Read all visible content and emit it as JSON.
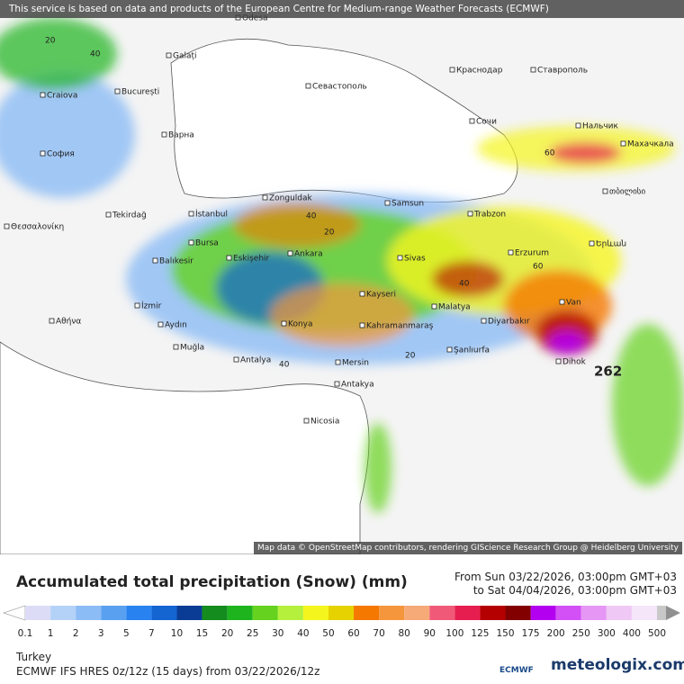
{
  "header": {
    "notice": "This service is based on data and products of the European Centre for Medium-range Weather Forecasts (ECMWF)"
  },
  "map": {
    "attribution": "Map data © OpenStreetMap contributors, rendering GIScience Research Group @ Heidelberg University",
    "cities": [
      "Odesa",
      "Galați",
      "Craiova",
      "București",
      "Севастополь",
      "Краснодар",
      "Ставрополь",
      "Варна",
      "София",
      "Сочи",
      "Нальчик",
      "Махачкала",
      "თბილისი",
      "Zonguldak",
      "Samsun",
      "Trabzon",
      "Tekirdağ",
      "İstanbul",
      "Θεσσαλονίκη",
      "Bursa",
      "Balıkesir",
      "Eskişehir",
      "Ankara",
      "Sivas",
      "Erzurum",
      "Երևան",
      "Kayseri",
      "İzmir",
      "Αθήνα",
      "Aydın",
      "Konya",
      "Kahramanmaraş",
      "Malatya",
      "Diyarbakır",
      "Van",
      "Muğla",
      "Antalya",
      "Mersin",
      "Şanlıurfa",
      "Dihok",
      "Antakya",
      "Nicosia"
    ],
    "contour_labels": [
      "20",
      "40",
      "40",
      "20",
      "60",
      "40",
      "60",
      "20",
      "40",
      "262"
    ]
  },
  "legend": {
    "title": "Accumulated total precipitation (Snow) (mm)",
    "period_from": "From Sun 03/22/2026, 03:00pm GMT+03",
    "period_to": "to Sat 04/04/2026, 03:00pm GMT+03",
    "values": [
      0.1,
      1,
      2,
      3,
      5,
      7,
      10,
      15,
      20,
      25,
      30,
      40,
      50,
      60,
      70,
      80,
      90,
      100,
      125,
      150,
      175,
      200,
      250,
      300,
      400,
      500
    ],
    "colors": [
      "#dcdcf7",
      "#b4d2f7",
      "#8cbcf5",
      "#5aa0f0",
      "#2882f0",
      "#1464d2",
      "#0a3c96",
      "#148c1e",
      "#1eb41e",
      "#64d21e",
      "#b4f03c",
      "#f5f51e",
      "#e6d200",
      "#f57800",
      "#f5963c",
      "#f5aa78",
      "#f05a78",
      "#e61e50",
      "#b40000",
      "#820000",
      "#b400f0",
      "#d250f5",
      "#e696f5",
      "#f0c8f5",
      "#f5e6fa"
    ],
    "under_color": "#ffffff",
    "over_color": "#c8c8c8"
  },
  "footer": {
    "region": "Turkey",
    "model": "ECMWF IFS HRES 0z/12z (15 days) from  03/22/2026/12z",
    "logo_ecmwf": "ECMWF",
    "logo_meteologix": "meteologix.com"
  }
}
